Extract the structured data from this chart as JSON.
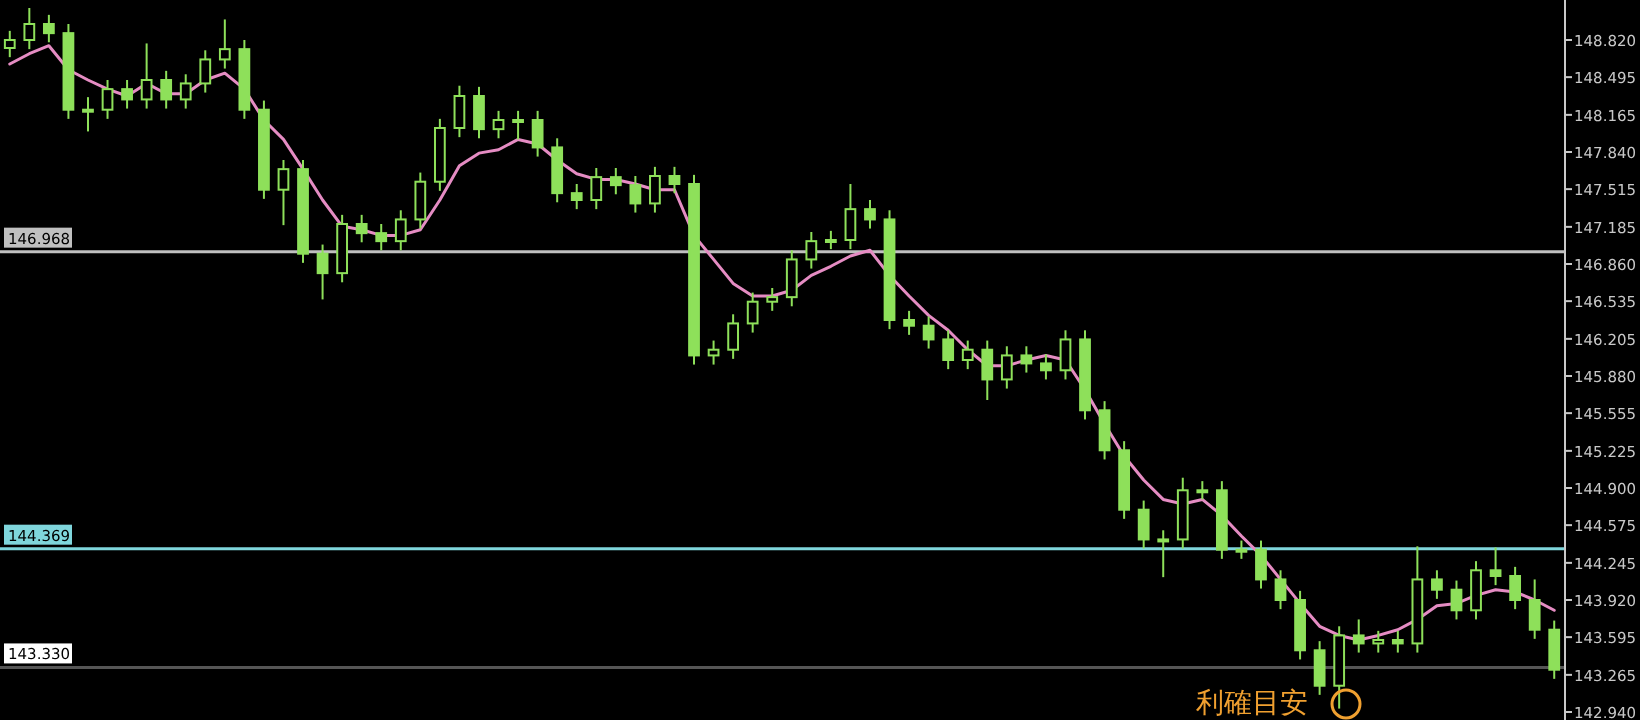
{
  "chart_data": {
    "type": "candlestick",
    "categories": [
      null,
      null,
      null,
      null,
      null,
      null,
      null,
      null,
      null,
      null,
      null,
      null,
      null,
      null,
      null,
      null,
      null,
      null,
      null,
      null,
      null,
      null,
      null,
      null,
      null,
      null,
      null,
      null,
      null,
      null,
      null,
      null,
      null,
      null,
      null,
      null,
      null,
      null,
      null,
      null,
      null,
      null,
      null,
      null,
      null,
      null,
      null,
      null,
      null,
      null,
      null,
      null,
      null,
      null,
      null,
      null,
      null,
      null,
      null,
      null,
      null,
      null,
      null,
      null,
      null,
      null,
      null,
      null,
      null,
      null,
      null,
      null,
      null,
      null,
      null,
      null,
      null,
      null,
      null,
      null
    ],
    "series": [
      {
        "type": "line",
        "color": "#e58cc3",
        "values": [
          148.61,
          148.7,
          148.77,
          148.56,
          148.47,
          148.39,
          148.33,
          148.44,
          148.35,
          148.35,
          148.47,
          148.53,
          148.39,
          148.12,
          147.95,
          147.69,
          147.42,
          147.19,
          147.16,
          147.11,
          147.11,
          147.16,
          147.42,
          147.72,
          147.83,
          147.86,
          147.95,
          147.91,
          147.77,
          147.65,
          147.6,
          147.6,
          147.56,
          147.51,
          147.51,
          147.11,
          146.9,
          146.69,
          146.58,
          146.58,
          146.63,
          146.76,
          146.84,
          146.93,
          146.98,
          146.76,
          146.58,
          146.41,
          146.28,
          146.11,
          145.97,
          145.97,
          146.02,
          146.06,
          146.02,
          145.76,
          145.46,
          145.18,
          144.97,
          144.8,
          144.76,
          144.8,
          144.66,
          144.48,
          144.31,
          144.1,
          143.89,
          143.69,
          143.61,
          143.57,
          143.61,
          143.66,
          143.75,
          143.87,
          143.89,
          143.96,
          144.01,
          143.99,
          143.92,
          143.83
        ]
      },
      {
        "type": "candlestick",
        "color": "#8ee05a",
        "ohlc": [
          [
            148.75,
            148.9,
            148.67,
            148.82
          ],
          [
            148.82,
            149.1,
            148.74,
            148.96
          ],
          [
            148.96,
            149.04,
            148.8,
            148.88
          ],
          [
            148.88,
            148.96,
            148.13,
            148.21
          ],
          [
            148.21,
            148.32,
            148.02,
            148.21
          ],
          [
            148.21,
            148.47,
            148.13,
            148.39
          ],
          [
            148.39,
            148.47,
            148.22,
            148.3
          ],
          [
            148.3,
            148.79,
            148.22,
            148.47
          ],
          [
            148.47,
            148.55,
            148.22,
            148.3
          ],
          [
            148.3,
            148.52,
            148.22,
            148.44
          ],
          [
            148.44,
            148.73,
            148.36,
            148.65
          ],
          [
            148.65,
            149.0,
            148.57,
            148.74
          ],
          [
            148.74,
            148.82,
            148.13,
            148.21
          ],
          [
            148.21,
            148.29,
            147.43,
            147.51
          ],
          [
            147.51,
            147.77,
            147.2,
            147.69
          ],
          [
            147.69,
            147.77,
            146.87,
            146.95
          ],
          [
            146.95,
            147.03,
            146.55,
            146.78
          ],
          [
            146.78,
            147.29,
            146.7,
            147.21
          ],
          [
            147.21,
            147.29,
            147.05,
            147.13
          ],
          [
            147.13,
            147.21,
            146.98,
            147.06
          ],
          [
            147.06,
            147.33,
            146.98,
            147.25
          ],
          [
            147.25,
            147.66,
            147.17,
            147.58
          ],
          [
            147.58,
            148.13,
            147.5,
            148.05
          ],
          [
            148.05,
            148.42,
            147.97,
            148.33
          ],
          [
            148.33,
            148.41,
            147.96,
            148.04
          ],
          [
            148.04,
            148.2,
            147.96,
            148.12
          ],
          [
            148.12,
            148.2,
            147.95,
            148.12
          ],
          [
            148.12,
            148.2,
            147.8,
            147.88
          ],
          [
            147.88,
            147.96,
            147.4,
            147.48
          ],
          [
            147.48,
            147.56,
            147.34,
            147.42
          ],
          [
            147.42,
            147.7,
            147.34,
            147.62
          ],
          [
            147.62,
            147.7,
            147.47,
            147.55
          ],
          [
            147.55,
            147.63,
            147.31,
            147.39
          ],
          [
            147.39,
            147.71,
            147.31,
            147.63
          ],
          [
            147.63,
            147.71,
            147.48,
            147.56
          ],
          [
            147.56,
            147.64,
            145.98,
            146.06
          ],
          [
            146.06,
            146.19,
            145.98,
            146.11
          ],
          [
            146.11,
            146.42,
            146.03,
            146.34
          ],
          [
            146.34,
            146.61,
            146.26,
            146.53
          ],
          [
            146.53,
            146.65,
            146.45,
            146.57
          ],
          [
            146.57,
            146.98,
            146.49,
            146.9
          ],
          [
            146.9,
            147.14,
            146.82,
            147.06
          ],
          [
            147.06,
            147.15,
            146.99,
            147.07
          ],
          [
            147.07,
            147.56,
            146.99,
            147.34
          ],
          [
            147.34,
            147.42,
            147.17,
            147.25
          ],
          [
            147.25,
            147.33,
            146.29,
            146.37
          ],
          [
            146.37,
            146.45,
            146.24,
            146.32
          ],
          [
            146.32,
            146.4,
            146.12,
            146.2
          ],
          [
            146.2,
            146.28,
            145.94,
            146.02
          ],
          [
            146.02,
            146.19,
            145.94,
            146.11
          ],
          [
            146.11,
            146.19,
            145.67,
            145.85
          ],
          [
            145.85,
            146.14,
            145.77,
            146.06
          ],
          [
            146.06,
            146.14,
            145.91,
            145.99
          ],
          [
            145.99,
            146.07,
            145.85,
            145.93
          ],
          [
            145.93,
            146.28,
            145.85,
            146.2
          ],
          [
            146.2,
            146.28,
            145.5,
            145.58
          ],
          [
            145.58,
            145.66,
            145.15,
            145.23
          ],
          [
            145.23,
            145.31,
            144.63,
            144.71
          ],
          [
            144.71,
            144.79,
            144.37,
            144.45
          ],
          [
            144.45,
            144.53,
            144.12,
            144.45
          ],
          [
            144.45,
            144.99,
            144.37,
            144.88
          ],
          [
            144.88,
            144.96,
            144.8,
            144.88
          ],
          [
            144.88,
            144.96,
            144.28,
            144.36
          ],
          [
            144.36,
            144.44,
            144.28,
            144.36
          ],
          [
            144.36,
            144.44,
            144.02,
            144.1
          ],
          [
            144.1,
            144.18,
            143.84,
            143.92
          ],
          [
            143.92,
            144.0,
            143.4,
            143.48
          ],
          [
            143.48,
            143.56,
            143.09,
            143.17
          ],
          [
            143.17,
            143.69,
            142.97,
            143.61
          ],
          [
            143.61,
            143.75,
            143.46,
            143.54
          ],
          [
            143.54,
            143.65,
            143.46,
            143.57
          ],
          [
            143.57,
            143.65,
            143.46,
            143.54
          ],
          [
            143.54,
            144.39,
            143.46,
            144.1
          ],
          [
            144.1,
            144.18,
            143.93,
            144.01
          ],
          [
            144.01,
            144.09,
            143.75,
            143.83
          ],
          [
            143.83,
            144.26,
            143.75,
            144.18
          ],
          [
            144.18,
            144.38,
            144.05,
            144.13
          ],
          [
            144.13,
            144.21,
            143.84,
            143.92
          ],
          [
            143.92,
            144.1,
            143.58,
            143.66
          ],
          [
            143.66,
            143.74,
            143.23,
            143.31
          ]
        ]
      }
    ],
    "ylim": [
      142.87,
      149.17
    ],
    "yticks": [
      {
        "value": 148.82,
        "label": "148.820"
      },
      {
        "value": 148.495,
        "label": "148.495"
      },
      {
        "value": 148.165,
        "label": "148.165"
      },
      {
        "value": 147.84,
        "label": "147.840"
      },
      {
        "value": 147.515,
        "label": "147.515"
      },
      {
        "value": 147.185,
        "label": "147.185"
      },
      {
        "value": 146.86,
        "label": "146.860"
      },
      {
        "value": 146.535,
        "label": "146.535"
      },
      {
        "value": 146.205,
        "label": "146.205"
      },
      {
        "value": 145.88,
        "label": "145.880"
      },
      {
        "value": 145.555,
        "label": "145.555"
      },
      {
        "value": 145.225,
        "label": "145.225"
      },
      {
        "value": 144.9,
        "label": "144.900"
      },
      {
        "value": 144.575,
        "label": "144.575"
      },
      {
        "value": 144.245,
        "label": "144.245"
      },
      {
        "value": 143.92,
        "label": "143.920"
      },
      {
        "value": 143.595,
        "label": "143.595"
      },
      {
        "value": 143.265,
        "label": "143.265"
      },
      {
        "value": 142.94,
        "label": "142.940"
      }
    ],
    "ref_lines": [
      {
        "axis": "y",
        "value": 146.968,
        "label": "146.968",
        "color": "#c0c0c0"
      },
      {
        "axis": "y",
        "value": 144.369,
        "label": "144.369",
        "color": "#7fd6dc"
      },
      {
        "axis": "y",
        "value": 143.33,
        "label": "143.330",
        "color": "#555555"
      }
    ],
    "annotations": [
      "利確目安"
    ]
  }
}
